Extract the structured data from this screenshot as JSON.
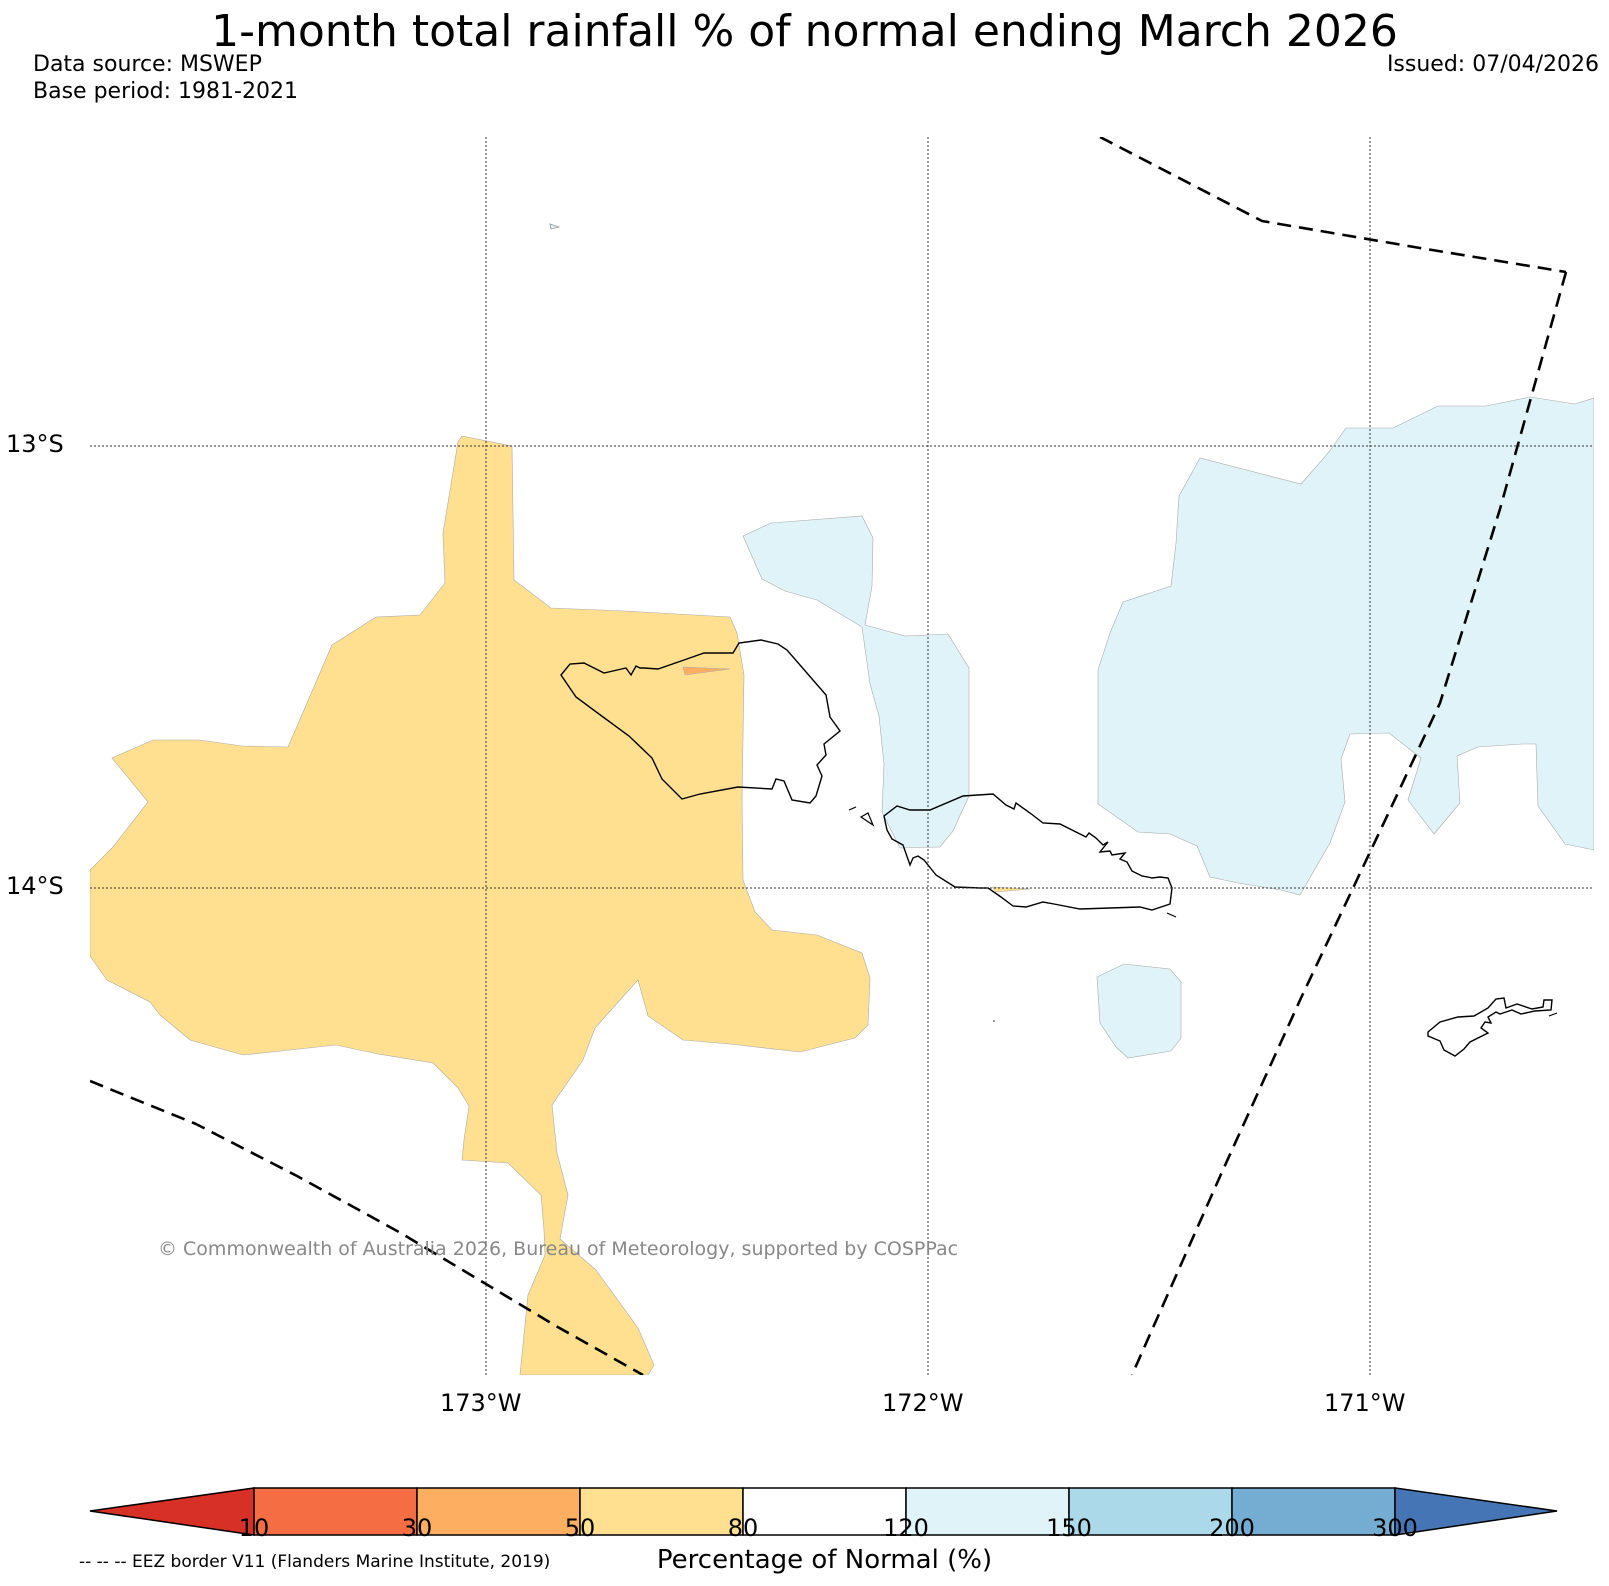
{
  "header": {
    "title": "1-month total rainfall % of normal ending March 2026",
    "data_source": "Data source: MSWEP",
    "base_period": "Base period: 1981-2021",
    "issued": "Issued: 07/04/2026"
  },
  "map": {
    "lat_labels": [
      "13°S",
      "14°S"
    ],
    "lon_labels": [
      "173°W",
      "172°W",
      "171°W"
    ],
    "copyright": "© Commonwealth of Australia 2026, Bureau of Meteorology, supported by COSPPac",
    "regions": [
      {
        "name": "west-anomaly",
        "category": "50-80",
        "color": "#fee090"
      },
      {
        "name": "east-anomaly",
        "category": "120-150",
        "color": "#e0f3f8"
      }
    ]
  },
  "colorbar": {
    "ticks": [
      "10",
      "30",
      "50",
      "80",
      "120",
      "150",
      "200",
      "300"
    ],
    "colors": [
      "#d73027",
      "#f46d43",
      "#fdae61",
      "#fee090",
      "#ffffff",
      "#e0f3f8",
      "#abd9e9",
      "#74add1",
      "#4575b4"
    ],
    "label": "Percentage of Normal (%)"
  },
  "legend": {
    "eez": "-- -- -- EEZ border V11 (Flanders Marine Institute, 2019)"
  }
}
